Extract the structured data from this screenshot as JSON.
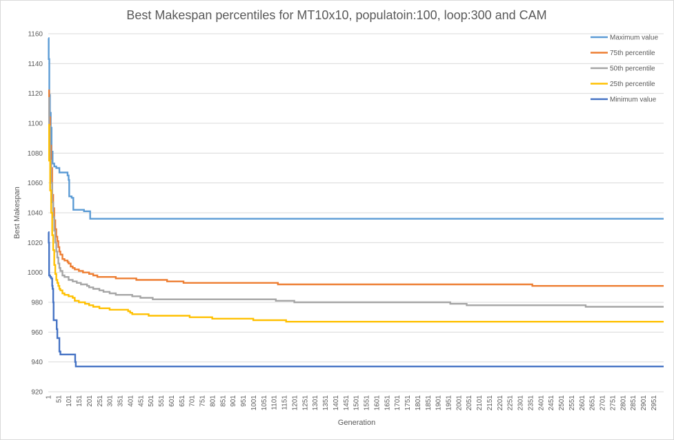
{
  "chart_data": {
    "type": "line",
    "title": "Best Makespan percentiles for MT10x10, populatoin:100, loop:300 and CAM",
    "xlabel": "Generation",
    "ylabel": "Best Makespan",
    "ylim": [
      920,
      1160
    ],
    "y_ticks": [
      "920",
      "940",
      "960",
      "980",
      "1000",
      "1020",
      "1040",
      "1060",
      "1080",
      "1100",
      "1120",
      "1140",
      "1160"
    ],
    "x_tick_labels": [
      "1",
      "51",
      "101",
      "151",
      "201",
      "251",
      "301",
      "351",
      "401",
      "451",
      "501",
      "551",
      "601",
      "651",
      "701",
      "751",
      "801",
      "851",
      "901",
      "951",
      "1001",
      "1051",
      "1101",
      "1151",
      "1201",
      "1251",
      "1301",
      "1351",
      "1401",
      "1451",
      "1501",
      "1551",
      "1601",
      "1651",
      "1701",
      "1751",
      "1801",
      "1851",
      "1901",
      "1951",
      "2001",
      "2051",
      "2101",
      "2151",
      "2201",
      "2251",
      "2301",
      "2351",
      "2401",
      "2451",
      "2501",
      "2551",
      "2601",
      "2651",
      "2701",
      "2751",
      "2801",
      "2851",
      "2901",
      "2951"
    ],
    "x_range": [
      1,
      3000
    ],
    "grid": "horizontal",
    "legend_position": "top-right",
    "series": [
      {
        "name": "Maximum value",
        "color": "#5B9BD5",
        "points": [
          [
            1,
            1157
          ],
          [
            3,
            1143
          ],
          [
            6,
            1119
          ],
          [
            9,
            1107
          ],
          [
            13,
            1097
          ],
          [
            17,
            1081
          ],
          [
            22,
            1073
          ],
          [
            30,
            1071
          ],
          [
            40,
            1070
          ],
          [
            55,
            1067
          ],
          [
            95,
            1065
          ],
          [
            100,
            1062
          ],
          [
            103,
            1051
          ],
          [
            115,
            1050
          ],
          [
            123,
            1042
          ],
          [
            170,
            1042
          ],
          [
            175,
            1041
          ],
          [
            200,
            1041
          ],
          [
            205,
            1036
          ],
          [
            3000,
            1036
          ]
        ]
      },
      {
        "name": "75th percentile",
        "color": "#ED7D31",
        "points": [
          [
            1,
            1122
          ],
          [
            5,
            1104
          ],
          [
            10,
            1085
          ],
          [
            15,
            1070
          ],
          [
            20,
            1052
          ],
          [
            25,
            1043
          ],
          [
            30,
            1035
          ],
          [
            35,
            1029
          ],
          [
            40,
            1024
          ],
          [
            45,
            1021
          ],
          [
            50,
            1017
          ],
          [
            55,
            1014
          ],
          [
            60,
            1012
          ],
          [
            70,
            1009
          ],
          [
            80,
            1008
          ],
          [
            95,
            1007
          ],
          [
            100,
            1006
          ],
          [
            110,
            1004
          ],
          [
            120,
            1003
          ],
          [
            130,
            1002
          ],
          [
            150,
            1001
          ],
          [
            170,
            1000
          ],
          [
            190,
            1000
          ],
          [
            200,
            999
          ],
          [
            220,
            998
          ],
          [
            240,
            997
          ],
          [
            320,
            997
          ],
          [
            330,
            996
          ],
          [
            420,
            996
          ],
          [
            430,
            995
          ],
          [
            560,
            995
          ],
          [
            580,
            994
          ],
          [
            630,
            994
          ],
          [
            660,
            993
          ],
          [
            1110,
            993
          ],
          [
            1120,
            992
          ],
          [
            2350,
            992
          ],
          [
            2360,
            991
          ],
          [
            3000,
            991
          ]
        ]
      },
      {
        "name": "50th percentile",
        "color": "#A5A5A5",
        "points": [
          [
            1,
            1117
          ],
          [
            5,
            1098
          ],
          [
            10,
            1075
          ],
          [
            15,
            1060
          ],
          [
            20,
            1047
          ],
          [
            25,
            1037
          ],
          [
            30,
            1028
          ],
          [
            35,
            1020
          ],
          [
            40,
            1014
          ],
          [
            45,
            1010
          ],
          [
            50,
            1006
          ],
          [
            55,
            1003
          ],
          [
            60,
            1001
          ],
          [
            70,
            998
          ],
          [
            80,
            997
          ],
          [
            100,
            995
          ],
          [
            120,
            994
          ],
          [
            140,
            993
          ],
          [
            160,
            992
          ],
          [
            190,
            991
          ],
          [
            200,
            990
          ],
          [
            220,
            989
          ],
          [
            250,
            988
          ],
          [
            270,
            987
          ],
          [
            300,
            986
          ],
          [
            330,
            985
          ],
          [
            400,
            985
          ],
          [
            410,
            984
          ],
          [
            450,
            983
          ],
          [
            500,
            983
          ],
          [
            510,
            982
          ],
          [
            1100,
            982
          ],
          [
            1110,
            981
          ],
          [
            1180,
            981
          ],
          [
            1200,
            980
          ],
          [
            1940,
            980
          ],
          [
            1960,
            979
          ],
          [
            2020,
            979
          ],
          [
            2040,
            978
          ],
          [
            2600,
            978
          ],
          [
            2620,
            977
          ],
          [
            3000,
            977
          ]
        ]
      },
      {
        "name": "25th percentile",
        "color": "#FFC000",
        "points": [
          [
            1,
            1099
          ],
          [
            5,
            1075
          ],
          [
            10,
            1055
          ],
          [
            15,
            1040
          ],
          [
            20,
            1025
          ],
          [
            25,
            1015
          ],
          [
            30,
            1005
          ],
          [
            35,
            999
          ],
          [
            40,
            995
          ],
          [
            45,
            993
          ],
          [
            50,
            991
          ],
          [
            55,
            989
          ],
          [
            60,
            988
          ],
          [
            70,
            986
          ],
          [
            80,
            985
          ],
          [
            100,
            984
          ],
          [
            120,
            983
          ],
          [
            130,
            981
          ],
          [
            150,
            980
          ],
          [
            180,
            979
          ],
          [
            200,
            978
          ],
          [
            220,
            977
          ],
          [
            250,
            976
          ],
          [
            290,
            976
          ],
          [
            300,
            975
          ],
          [
            380,
            975
          ],
          [
            390,
            974
          ],
          [
            400,
            973
          ],
          [
            410,
            972
          ],
          [
            480,
            972
          ],
          [
            490,
            971
          ],
          [
            670,
            971
          ],
          [
            690,
            970
          ],
          [
            790,
            970
          ],
          [
            800,
            969
          ],
          [
            990,
            969
          ],
          [
            1000,
            968
          ],
          [
            1150,
            968
          ],
          [
            1160,
            967
          ],
          [
            3000,
            967
          ]
        ]
      },
      {
        "name": "Minimum value",
        "color": "#4472C4",
        "points": [
          [
            1,
            1027
          ],
          [
            3,
            1020
          ],
          [
            5,
            998
          ],
          [
            10,
            997
          ],
          [
            15,
            996
          ],
          [
            20,
            991
          ],
          [
            22,
            989
          ],
          [
            25,
            980
          ],
          [
            27,
            968
          ],
          [
            40,
            968
          ],
          [
            42,
            962
          ],
          [
            45,
            956
          ],
          [
            50,
            956
          ],
          [
            55,
            947
          ],
          [
            60,
            945
          ],
          [
            130,
            945
          ],
          [
            132,
            940
          ],
          [
            135,
            937
          ],
          [
            3000,
            937
          ]
        ]
      }
    ]
  }
}
